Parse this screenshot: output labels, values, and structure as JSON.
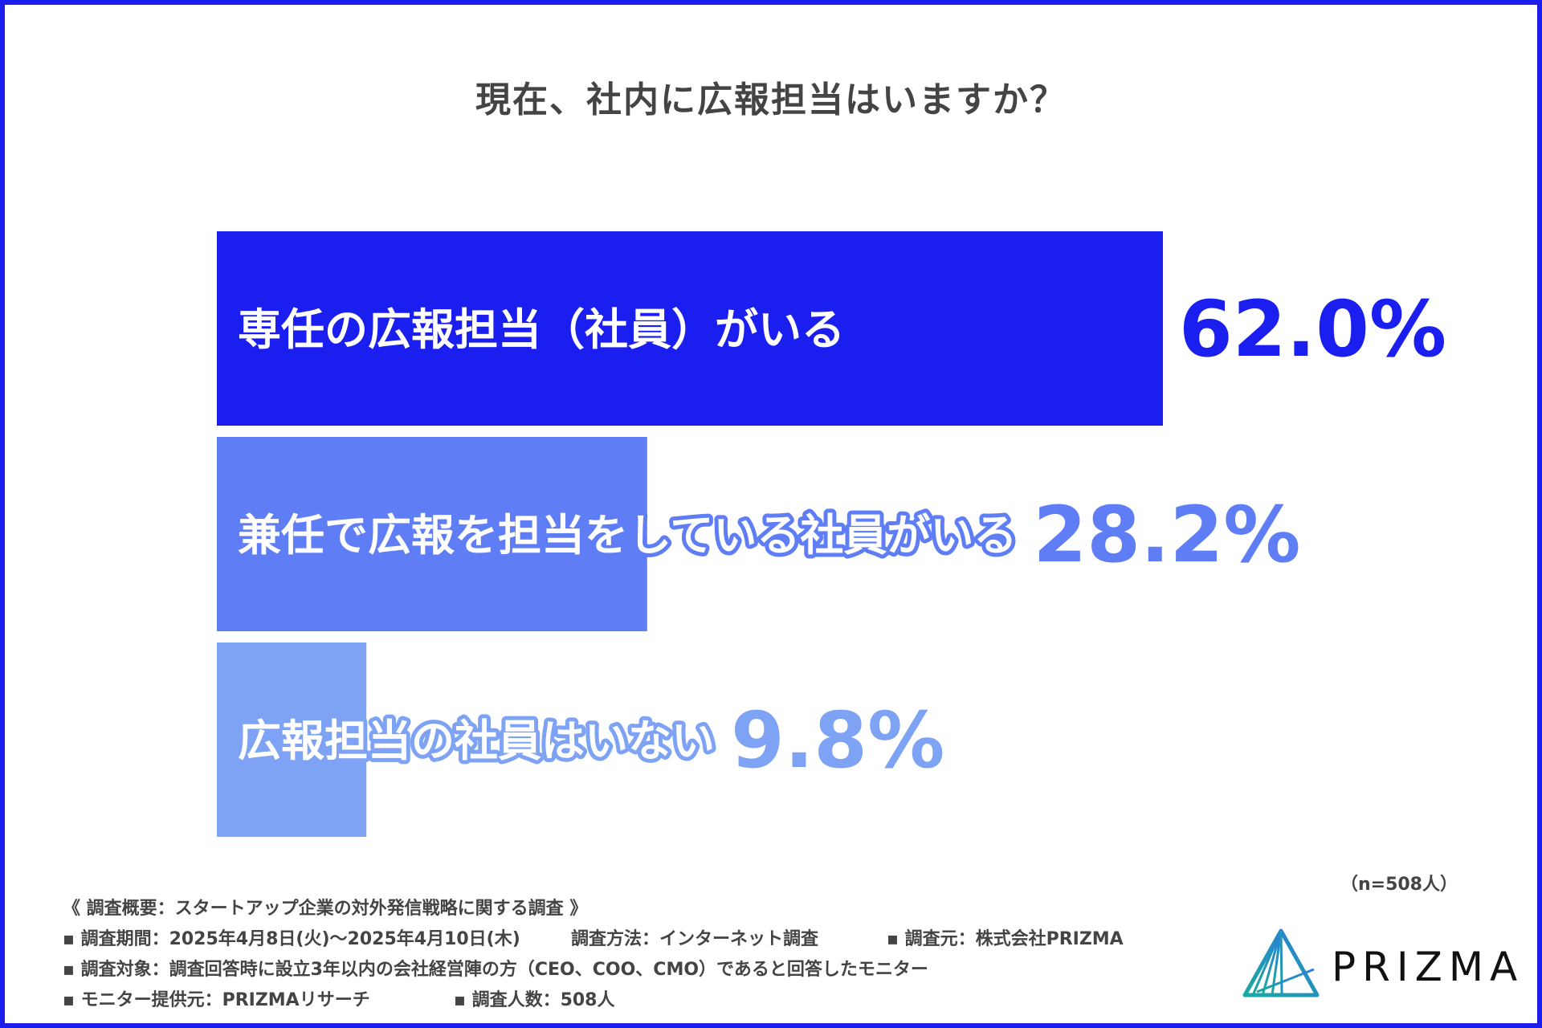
{
  "chart_data": {
    "type": "bar",
    "orientation": "horizontal",
    "title": "現在、社内に広報担当はいますか？",
    "categories": [
      "専任の広報担当（社員）がいる",
      "兼任で広報を担当をしている社員がいる",
      "広報担当の社員はいない"
    ],
    "values": [
      62.0,
      28.2,
      9.8
    ],
    "value_labels": [
      "62.0%",
      "28.2%",
      "9.8%"
    ],
    "colors": [
      "#1a1ff0",
      "#5f7ef6",
      "#7ea3f4"
    ],
    "xlim": [
      0,
      100
    ],
    "grid": false,
    "legend": "none"
  },
  "sample_size": "（n=508人）",
  "footnotes": {
    "heading": "《 調査概要：スタートアップ企業の対外発信戦略に関する調査 》",
    "period": "▪ 調査期間：2025年4月8日(火)〜2025年4月10日(木)",
    "method": "調査方法：インターネット調査",
    "source": "▪ 調査元：株式会社PRIZMA",
    "target": "▪ 調査対象：調査回答時に設立3年以内の会社経営陣の方（CEO、COO、CMO）であると回答したモニター",
    "provider": "▪ モニター提供元：PRIZMAリサーチ",
    "respondents": "▪ 調査人数：508人"
  },
  "logo": {
    "text": "PRIZMA"
  }
}
